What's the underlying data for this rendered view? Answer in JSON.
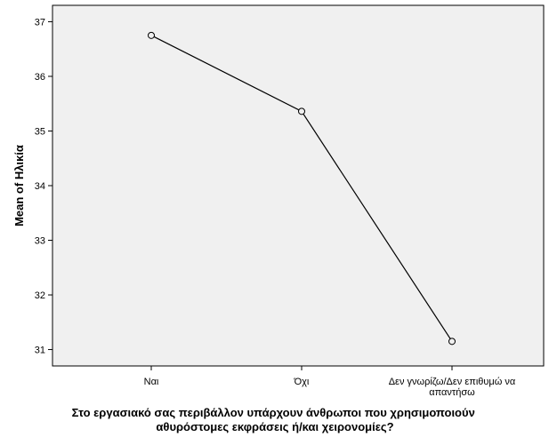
{
  "chart_data": {
    "type": "line",
    "categories": [
      "Ναι",
      "Όχι",
      "Δεν γνωρίζω/Δεν επιθυμώ να απαντήσω"
    ],
    "category_lines": [
      [
        "Ναι"
      ],
      [
        "Όχι"
      ],
      [
        "Δεν γνωρίζω/Δεν επιθυμώ να",
        "απαντήσω"
      ]
    ],
    "series": [
      {
        "values": [
          36.75,
          35.36,
          31.15
        ]
      }
    ],
    "title": "",
    "xlabel": "Στο εργασιακό σας περιβάλλον υπάρχουν άνθρωποι που χρησιμοποιούν αθυρόστομες εκφράσεις ή/και χειρονομίες?",
    "xlabel_lines": [
      "Στο εργασιακό σας περιβάλλον υπάρχουν άνθρωποι που χρησιμοποιούν",
      "αθυρόστομες εκφράσεις ή/και χειρονομίες?"
    ],
    "ylabel": "Mean of Ηλικία",
    "ylim": [
      30.7,
      37.3
    ],
    "yticks": [
      31,
      32,
      33,
      34,
      35,
      36,
      37
    ],
    "grid": false,
    "legend": "none",
    "colors": {
      "plot_background": "#f0f0f0",
      "line": "#000000",
      "marker_fill": "#f0f0f0",
      "axis": "#000000"
    }
  }
}
